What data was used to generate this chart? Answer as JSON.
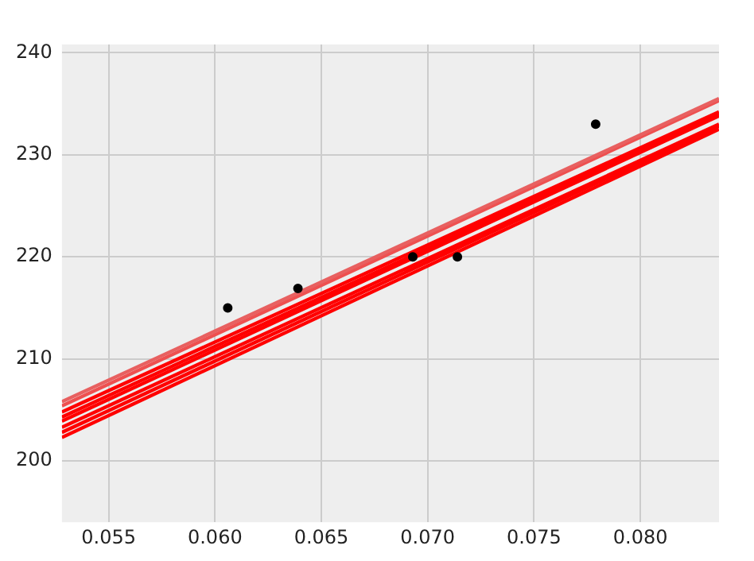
{
  "chart_data": {
    "type": "scatter",
    "xlim": [
      0.0528,
      0.0837
    ],
    "ylim": [
      194,
      240.8
    ],
    "xticks": [
      {
        "value": 0.055,
        "label": "0.055"
      },
      {
        "value": 0.06,
        "label": "0.060"
      },
      {
        "value": 0.065,
        "label": "0.065"
      },
      {
        "value": 0.07,
        "label": "0.070"
      },
      {
        "value": 0.075,
        "label": "0.075"
      },
      {
        "value": 0.08,
        "label": "0.080"
      }
    ],
    "yticks": [
      200,
      210,
      220,
      230,
      240
    ],
    "grid": true,
    "legend": false,
    "series": [
      {
        "type": "line",
        "color": "#e86060",
        "x": [
          0.0528,
          0.0837
        ],
        "values": [
          205.8,
          235.5
        ],
        "marker": "none",
        "line_style": "solid"
      },
      {
        "type": "line",
        "color": "#ee5050",
        "x": [
          0.0528,
          0.0837
        ],
        "values": [
          205.4,
          235.3
        ],
        "marker": "none",
        "line_style": "solid"
      },
      {
        "type": "line",
        "color": "#ff0000",
        "x": [
          0.0528,
          0.0837
        ],
        "values": [
          204.8,
          234.2
        ],
        "marker": "none",
        "line_style": "solid"
      },
      {
        "type": "line",
        "color": "#ff0000",
        "x": [
          0.0528,
          0.0837
        ],
        "values": [
          204.3,
          234.0
        ],
        "marker": "none",
        "line_style": "solid"
      },
      {
        "type": "line",
        "color": "#ff0000",
        "x": [
          0.0528,
          0.0837
        ],
        "values": [
          203.9,
          233.8
        ],
        "marker": "none",
        "line_style": "solid"
      },
      {
        "type": "line",
        "color": "#ff0000",
        "x": [
          0.0528,
          0.0837
        ],
        "values": [
          203.3,
          233.0
        ],
        "marker": "none",
        "line_style": "solid"
      },
      {
        "type": "line",
        "color": "#ff0000",
        "x": [
          0.0528,
          0.0837
        ],
        "values": [
          202.8,
          232.8
        ],
        "marker": "none",
        "line_style": "solid"
      },
      {
        "type": "line",
        "color": "#ff0000",
        "x": [
          0.0528,
          0.0837
        ],
        "values": [
          202.3,
          232.5
        ],
        "marker": "none",
        "line_style": "solid"
      },
      {
        "type": "scatter",
        "color": "#000000",
        "x": [
          0.0606,
          0.0639,
          0.0693,
          0.0714,
          0.0779
        ],
        "values": [
          215,
          216.9,
          220,
          220,
          233
        ],
        "marker": "circle"
      }
    ]
  }
}
